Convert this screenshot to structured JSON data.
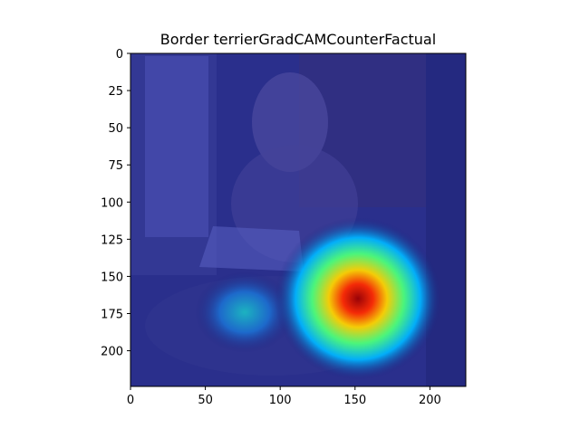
{
  "chart_data": {
    "type": "heatmap",
    "title": "Border terrierGradCAMCounterFactual",
    "xlabel": "",
    "ylabel": "",
    "xlim": [
      0,
      224
    ],
    "ylim": [
      224,
      0
    ],
    "xticks": [
      0,
      50,
      100,
      150,
      200
    ],
    "yticks": [
      0,
      25,
      50,
      75,
      100,
      125,
      150,
      175,
      200
    ],
    "colormap": "jet",
    "background_color": "#1a1f7a",
    "hotspots": [
      {
        "x": 148,
        "y": 173,
        "intensity": 1.0
      },
      {
        "x": 140,
        "y": 160,
        "intensity": 0.7
      },
      {
        "x": 75,
        "y": 168,
        "intensity": 0.45
      }
    ]
  }
}
